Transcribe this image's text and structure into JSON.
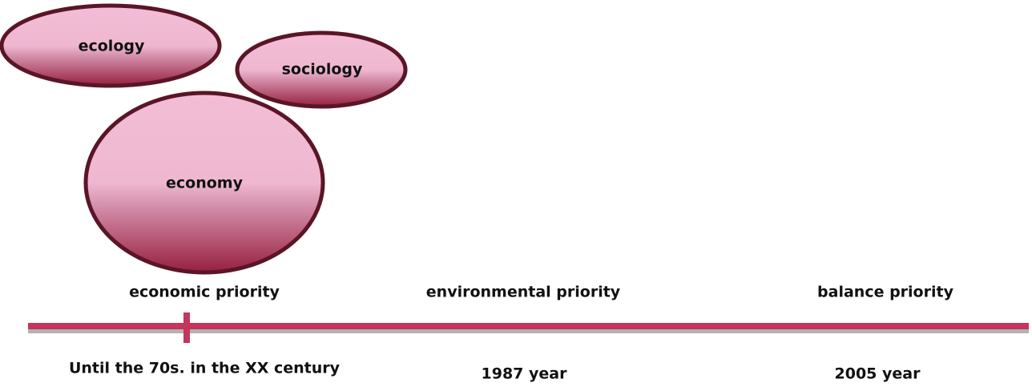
{
  "nodes": [
    {
      "label": "ecology"
    },
    {
      "label": "sociology"
    },
    {
      "label": "economy"
    }
  ],
  "timeline": [
    {
      "priority": "economic priority",
      "period": "Until the 70s. in the XX century"
    },
    {
      "priority": "environmental priority",
      "period": "1987 year"
    },
    {
      "priority": "balance priority",
      "period": "2005 year"
    }
  ]
}
